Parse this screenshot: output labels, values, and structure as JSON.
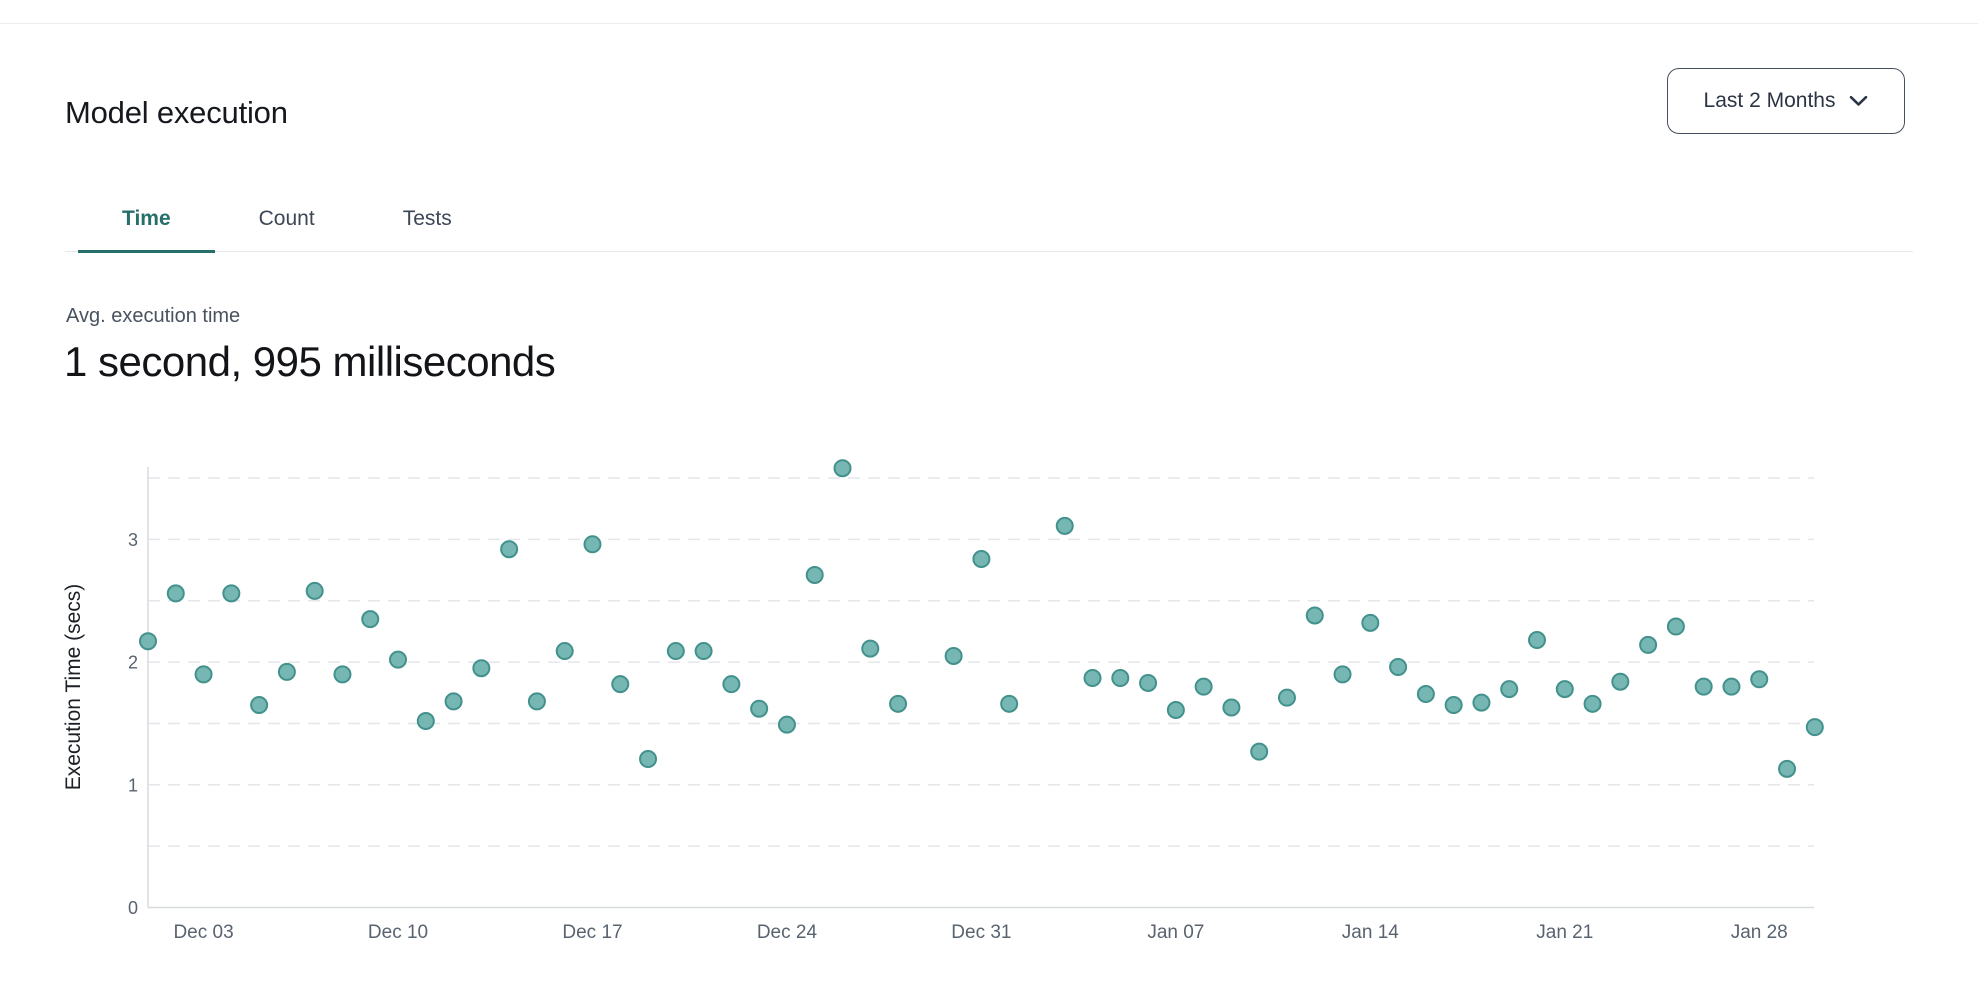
{
  "header": {
    "title": "Model execution",
    "range_selector": {
      "label": "Last 2 Months",
      "icon": "chevron-down-icon"
    }
  },
  "tabs": [
    {
      "label": "Time",
      "active": true
    },
    {
      "label": "Count",
      "active": false
    },
    {
      "label": "Tests",
      "active": false
    }
  ],
  "stat": {
    "label": "Avg. execution time",
    "value": "1 second, 995 milliseconds"
  },
  "colors": {
    "accent_teal": "#266f6b",
    "dot_fill": "#76b7b3",
    "dot_stroke": "#43918c",
    "grid": "#e4e6ea",
    "axis": "#d7dade",
    "tick_text": "#59636f",
    "divider": "#ececee"
  },
  "chart_data": {
    "type": "scatter",
    "title": "",
    "xlabel": "",
    "ylabel": "Execution Time (secs)",
    "ylim": [
      0,
      3.6
    ],
    "y_ticks": [
      0,
      1,
      2,
      3
    ],
    "grid_step": 0.5,
    "grid": "dashed-horizontal",
    "legend": "none",
    "x_range_days": [
      "Dec 01",
      "Jan 30"
    ],
    "x_tick_labels": [
      "Dec 03",
      "Dec 10",
      "Dec 17",
      "Dec 24",
      "Dec 31",
      "Jan 07",
      "Jan 14",
      "Jan 21",
      "Jan 28"
    ],
    "points": [
      {
        "date": "Dec 01",
        "secs": 2.17
      },
      {
        "date": "Dec 02",
        "secs": 2.56
      },
      {
        "date": "Dec 03",
        "secs": 1.9
      },
      {
        "date": "Dec 04",
        "secs": 2.56
      },
      {
        "date": "Dec 05",
        "secs": 1.65
      },
      {
        "date": "Dec 06",
        "secs": 1.92
      },
      {
        "date": "Dec 07",
        "secs": 2.58
      },
      {
        "date": "Dec 08",
        "secs": 1.9
      },
      {
        "date": "Dec 09",
        "secs": 2.35
      },
      {
        "date": "Dec 10",
        "secs": 2.02
      },
      {
        "date": "Dec 11",
        "secs": 1.52
      },
      {
        "date": "Dec 12",
        "secs": 1.68
      },
      {
        "date": "Dec 13",
        "secs": 1.95
      },
      {
        "date": "Dec 14",
        "secs": 2.92
      },
      {
        "date": "Dec 15",
        "secs": 1.68
      },
      {
        "date": "Dec 16",
        "secs": 2.09
      },
      {
        "date": "Dec 17",
        "secs": 2.96
      },
      {
        "date": "Dec 18",
        "secs": 1.82
      },
      {
        "date": "Dec 19",
        "secs": 1.21
      },
      {
        "date": "Dec 20",
        "secs": 2.09
      },
      {
        "date": "Dec 21",
        "secs": 2.09
      },
      {
        "date": "Dec 22",
        "secs": 1.82
      },
      {
        "date": "Dec 23",
        "secs": 1.62
      },
      {
        "date": "Dec 24",
        "secs": 1.49
      },
      {
        "date": "Dec 25",
        "secs": 2.71
      },
      {
        "date": "Dec 26",
        "secs": 3.58
      },
      {
        "date": "Dec 27",
        "secs": 2.11
      },
      {
        "date": "Dec 28",
        "secs": 1.66
      },
      {
        "date": "Dec 30",
        "secs": 2.05
      },
      {
        "date": "Dec 31",
        "secs": 2.84
      },
      {
        "date": "Jan 01",
        "secs": 1.66
      },
      {
        "date": "Jan 03",
        "secs": 3.11
      },
      {
        "date": "Jan 04",
        "secs": 1.87
      },
      {
        "date": "Jan 05",
        "secs": 1.87
      },
      {
        "date": "Jan 06",
        "secs": 1.83
      },
      {
        "date": "Jan 07",
        "secs": 1.61
      },
      {
        "date": "Jan 08",
        "secs": 1.8
      },
      {
        "date": "Jan 09",
        "secs": 1.63
      },
      {
        "date": "Jan 10",
        "secs": 1.27
      },
      {
        "date": "Jan 11",
        "secs": 1.71
      },
      {
        "date": "Jan 12",
        "secs": 2.38
      },
      {
        "date": "Jan 13",
        "secs": 1.9
      },
      {
        "date": "Jan 14",
        "secs": 2.32
      },
      {
        "date": "Jan 15",
        "secs": 1.96
      },
      {
        "date": "Jan 16",
        "secs": 1.74
      },
      {
        "date": "Jan 17",
        "secs": 1.65
      },
      {
        "date": "Jan 18",
        "secs": 1.67
      },
      {
        "date": "Jan 19",
        "secs": 1.78
      },
      {
        "date": "Jan 20",
        "secs": 2.18
      },
      {
        "date": "Jan 21",
        "secs": 1.78
      },
      {
        "date": "Jan 22",
        "secs": 1.66
      },
      {
        "date": "Jan 23",
        "secs": 1.84
      },
      {
        "date": "Jan 24",
        "secs": 2.14
      },
      {
        "date": "Jan 25",
        "secs": 2.29
      },
      {
        "date": "Jan 26",
        "secs": 1.8
      },
      {
        "date": "Jan 27",
        "secs": 1.8
      },
      {
        "date": "Jan 28",
        "secs": 1.86
      },
      {
        "date": "Jan 29",
        "secs": 1.13
      },
      {
        "date": "Jan 30",
        "secs": 1.47
      }
    ]
  }
}
